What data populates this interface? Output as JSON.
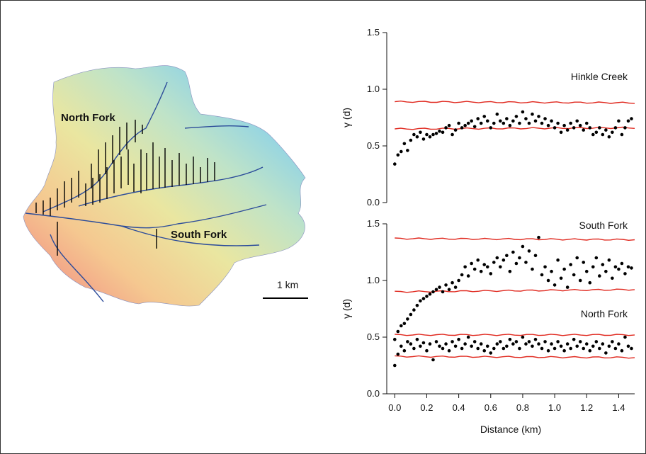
{
  "map": {
    "labels": {
      "north": "North Fork",
      "south": "South Fork"
    },
    "scale_label": "1 km"
  },
  "chart_data": [
    {
      "type": "scatter",
      "panel": "top",
      "xlabel": "",
      "ylabel": "γ (d)",
      "xlim": [
        -0.05,
        1.5
      ],
      "ylim": [
        0,
        1.5
      ],
      "yticks": [
        "0.0",
        "0.5",
        "1.0",
        "1.5"
      ],
      "annotations": [
        "Hinkle Creek"
      ],
      "series": [
        {
          "role": "points",
          "x": [
            0.0,
            0.02,
            0.04,
            0.06,
            0.08,
            0.1,
            0.12,
            0.14,
            0.16,
            0.18,
            0.2,
            0.22,
            0.24,
            0.26,
            0.28,
            0.3,
            0.32,
            0.34,
            0.36,
            0.38,
            0.4,
            0.42,
            0.44,
            0.46,
            0.48,
            0.5,
            0.52,
            0.54,
            0.56,
            0.58,
            0.6,
            0.62,
            0.64,
            0.66,
            0.68,
            0.7,
            0.72,
            0.74,
            0.76,
            0.78,
            0.8,
            0.82,
            0.84,
            0.86,
            0.88,
            0.9,
            0.92,
            0.94,
            0.96,
            0.98,
            1.0,
            1.02,
            1.04,
            1.06,
            1.08,
            1.1,
            1.12,
            1.14,
            1.16,
            1.18,
            1.2,
            1.22,
            1.24,
            1.26,
            1.28,
            1.3,
            1.32,
            1.34,
            1.36,
            1.38,
            1.4,
            1.42,
            1.44,
            1.46,
            1.48
          ],
          "y": [
            0.34,
            0.42,
            0.45,
            0.52,
            0.46,
            0.55,
            0.6,
            0.58,
            0.62,
            0.56,
            0.6,
            0.58,
            0.6,
            0.61,
            0.63,
            0.62,
            0.66,
            0.68,
            0.6,
            0.64,
            0.7,
            0.66,
            0.68,
            0.7,
            0.72,
            0.67,
            0.74,
            0.7,
            0.76,
            0.72,
            0.66,
            0.7,
            0.78,
            0.72,
            0.7,
            0.74,
            0.68,
            0.72,
            0.76,
            0.7,
            0.8,
            0.74,
            0.7,
            0.78,
            0.72,
            0.76,
            0.7,
            0.74,
            0.68,
            0.72,
            0.66,
            0.7,
            0.62,
            0.68,
            0.64,
            0.7,
            0.66,
            0.72,
            0.68,
            0.64,
            0.7,
            0.66,
            0.6,
            0.62,
            0.66,
            0.6,
            0.64,
            0.58,
            0.62,
            0.66,
            0.72,
            0.6,
            0.66,
            0.72,
            0.74
          ]
        },
        {
          "role": "upper-envelope",
          "x": [
            0.0,
            1.5
          ],
          "y": [
            0.89,
            0.88
          ]
        },
        {
          "role": "lower-envelope",
          "x": [
            0.0,
            1.5
          ],
          "y": [
            0.65,
            0.66
          ]
        }
      ]
    },
    {
      "type": "scatter",
      "panel": "bottom",
      "xlabel": "Distance (km)",
      "ylabel": "γ (d)",
      "xlim": [
        -0.05,
        1.5
      ],
      "ylim": [
        0,
        1.5
      ],
      "yticks": [
        "0.0",
        "0.5",
        "1.0",
        "1.5"
      ],
      "xticks": [
        "0.0",
        "0.2",
        "0.4",
        "0.6",
        "0.8",
        "1.0",
        "1.2",
        "1.4"
      ],
      "annotations": [
        "South Fork",
        "North Fork"
      ],
      "series": [
        {
          "name": "South Fork",
          "role": "points",
          "x": [
            0.0,
            0.02,
            0.04,
            0.06,
            0.08,
            0.1,
            0.12,
            0.14,
            0.16,
            0.18,
            0.2,
            0.22,
            0.24,
            0.26,
            0.28,
            0.3,
            0.32,
            0.34,
            0.36,
            0.38,
            0.4,
            0.42,
            0.44,
            0.46,
            0.48,
            0.5,
            0.52,
            0.54,
            0.56,
            0.58,
            0.6,
            0.62,
            0.64,
            0.66,
            0.68,
            0.7,
            0.72,
            0.74,
            0.76,
            0.78,
            0.8,
            0.82,
            0.84,
            0.86,
            0.88,
            0.9,
            0.92,
            0.94,
            0.96,
            0.98,
            1.0,
            1.02,
            1.04,
            1.06,
            1.08,
            1.1,
            1.12,
            1.14,
            1.16,
            1.18,
            1.2,
            1.22,
            1.24,
            1.26,
            1.28,
            1.3,
            1.32,
            1.34,
            1.36,
            1.38,
            1.4,
            1.42,
            1.44,
            1.46,
            1.48
          ],
          "y": [
            0.48,
            0.55,
            0.6,
            0.62,
            0.66,
            0.7,
            0.74,
            0.78,
            0.82,
            0.84,
            0.86,
            0.88,
            0.9,
            0.92,
            0.94,
            0.9,
            0.96,
            0.92,
            0.98,
            0.94,
            1.0,
            1.05,
            1.12,
            1.04,
            1.15,
            1.1,
            1.18,
            1.08,
            1.14,
            1.12,
            1.06,
            1.16,
            1.2,
            1.12,
            1.18,
            1.22,
            1.08,
            1.25,
            1.15,
            1.2,
            1.3,
            1.16,
            1.26,
            1.1,
            1.22,
            1.38,
            1.05,
            1.12,
            1.0,
            1.08,
            0.96,
            1.18,
            1.02,
            1.1,
            0.94,
            1.14,
            1.05,
            1.2,
            1.0,
            1.16,
            1.08,
            0.98,
            1.12,
            1.2,
            1.04,
            1.14,
            1.08,
            1.18,
            1.02,
            1.12,
            1.1,
            1.15,
            1.06,
            1.12,
            1.11
          ]
        },
        {
          "name": "North Fork",
          "role": "points",
          "x": [
            0.0,
            0.02,
            0.04,
            0.06,
            0.08,
            0.1,
            0.12,
            0.14,
            0.16,
            0.18,
            0.2,
            0.22,
            0.24,
            0.26,
            0.28,
            0.3,
            0.32,
            0.34,
            0.36,
            0.38,
            0.4,
            0.42,
            0.44,
            0.46,
            0.48,
            0.5,
            0.52,
            0.54,
            0.56,
            0.58,
            0.6,
            0.62,
            0.64,
            0.66,
            0.68,
            0.7,
            0.72,
            0.74,
            0.76,
            0.78,
            0.8,
            0.82,
            0.84,
            0.86,
            0.88,
            0.9,
            0.92,
            0.94,
            0.96,
            0.98,
            1.0,
            1.02,
            1.04,
            1.06,
            1.08,
            1.1,
            1.12,
            1.14,
            1.16,
            1.18,
            1.2,
            1.22,
            1.24,
            1.26,
            1.28,
            1.3,
            1.32,
            1.34,
            1.36,
            1.38,
            1.4,
            1.42,
            1.44,
            1.46,
            1.48
          ],
          "y": [
            0.25,
            0.35,
            0.42,
            0.38,
            0.46,
            0.44,
            0.4,
            0.48,
            0.42,
            0.45,
            0.38,
            0.44,
            0.3,
            0.46,
            0.42,
            0.4,
            0.44,
            0.38,
            0.46,
            0.42,
            0.48,
            0.4,
            0.44,
            0.5,
            0.42,
            0.46,
            0.4,
            0.44,
            0.38,
            0.42,
            0.36,
            0.4,
            0.44,
            0.46,
            0.4,
            0.42,
            0.48,
            0.44,
            0.46,
            0.4,
            0.5,
            0.44,
            0.46,
            0.42,
            0.48,
            0.44,
            0.4,
            0.46,
            0.38,
            0.44,
            0.4,
            0.46,
            0.42,
            0.38,
            0.44,
            0.4,
            0.48,
            0.42,
            0.46,
            0.4,
            0.44,
            0.38,
            0.42,
            0.46,
            0.4,
            0.44,
            0.36,
            0.42,
            0.46,
            0.4,
            0.44,
            0.38,
            0.5,
            0.42,
            0.4
          ]
        },
        {
          "role": "upper-envelope",
          "name": "South Fork upper",
          "x": [
            0.0,
            1.5
          ],
          "y": [
            1.37,
            1.36
          ]
        },
        {
          "role": "lower-envelope",
          "name": "South Fork lower",
          "x": [
            0.0,
            1.5
          ],
          "y": [
            0.9,
            0.92
          ]
        },
        {
          "role": "upper-envelope",
          "name": "North Fork upper",
          "x": [
            0.0,
            1.5
          ],
          "y": [
            0.52,
            0.52
          ]
        },
        {
          "role": "lower-envelope",
          "name": "North Fork lower",
          "x": [
            0.0,
            1.5
          ],
          "y": [
            0.33,
            0.32
          ]
        }
      ]
    }
  ],
  "colors": {
    "envelope": "#e0281e",
    "points": "#000000",
    "axis": "#111111"
  }
}
